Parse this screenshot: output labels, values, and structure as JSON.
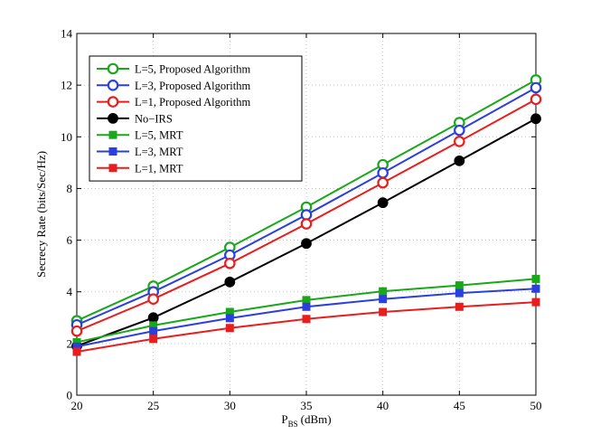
{
  "chart_data": {
    "type": "line",
    "title": "",
    "xlabel": "P",
    "xlabel_sub": "BS",
    "xlabel_unit": "(dBm)",
    "ylabel": "Secrecy Rate (bits/Sec/Hz)",
    "xlim": [
      20,
      50
    ],
    "ylim": [
      0,
      14
    ],
    "xticks": [
      20,
      25,
      30,
      35,
      40,
      45,
      50
    ],
    "yticks": [
      0,
      2,
      4,
      6,
      8,
      10,
      12,
      14
    ],
    "grid": true,
    "legend_position": "top-left",
    "x": [
      20,
      25,
      30,
      35,
      40,
      45,
      50
    ],
    "series": [
      {
        "name": "L=5, Proposed Algorithm",
        "color": "#1aa81a",
        "marker": "circle-open",
        "values": [
          2.88,
          4.22,
          5.72,
          7.28,
          8.92,
          10.55,
          12.2
        ]
      },
      {
        "name": "L=3, Proposed Algorithm",
        "color": "#2b3fe0",
        "marker": "circle-open",
        "values": [
          2.72,
          4.0,
          5.42,
          6.98,
          8.6,
          10.25,
          11.9
        ]
      },
      {
        "name": "L=1, Proposed Algorithm",
        "color": "#e81e1e",
        "marker": "circle-open",
        "values": [
          2.48,
          3.72,
          5.1,
          6.63,
          8.22,
          9.82,
          11.45
        ]
      },
      {
        "name": "No−IRS",
        "color": "#000000",
        "marker": "circle-filled",
        "values": [
          1.9,
          3.0,
          4.38,
          5.87,
          7.45,
          9.07,
          10.7
        ]
      },
      {
        "name": "L=5, MRT",
        "color": "#1aa81a",
        "marker": "square-filled",
        "values": [
          2.05,
          2.7,
          3.22,
          3.68,
          4.02,
          4.25,
          4.5
        ]
      },
      {
        "name": "L=3, MRT",
        "color": "#2b3fe0",
        "marker": "square-filled",
        "values": [
          1.88,
          2.48,
          2.98,
          3.42,
          3.72,
          3.95,
          4.12
        ]
      },
      {
        "name": "L=1, MRT",
        "color": "#e81e1e",
        "marker": "square-filled",
        "values": [
          1.68,
          2.18,
          2.6,
          2.95,
          3.22,
          3.42,
          3.6
        ]
      }
    ]
  }
}
